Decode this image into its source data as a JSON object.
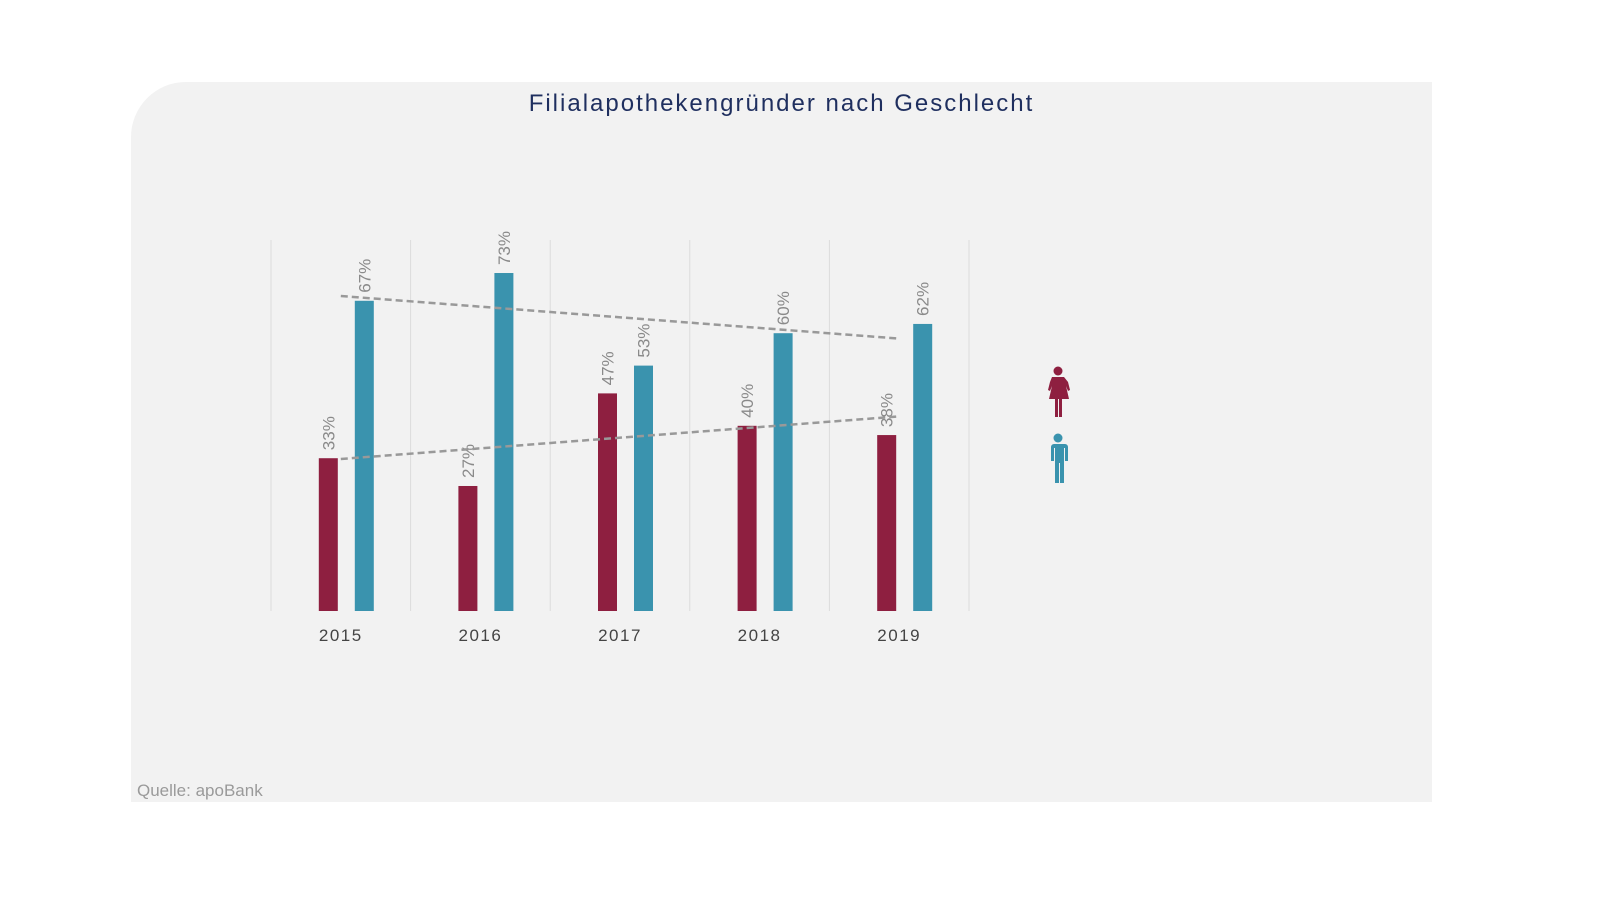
{
  "chart_data": {
    "type": "bar",
    "title": "Filialapothekengründer nach Geschlecht",
    "categories": [
      "2015",
      "2016",
      "2017",
      "2018",
      "2019"
    ],
    "series": [
      {
        "name": "Frauen",
        "icon": "female-icon",
        "color": "#8e1f40",
        "values": [
          33,
          27,
          47,
          40,
          38
        ]
      },
      {
        "name": "Männer",
        "icon": "male-icon",
        "color": "#3a93ae",
        "values": [
          67,
          73,
          53,
          60,
          62
        ]
      }
    ],
    "value_suffix": "%",
    "trendlines": true,
    "ylim": [
      0,
      80
    ],
    "grid": "vertical",
    "legend": "right (icons)",
    "source": "Quelle: apoBank"
  }
}
